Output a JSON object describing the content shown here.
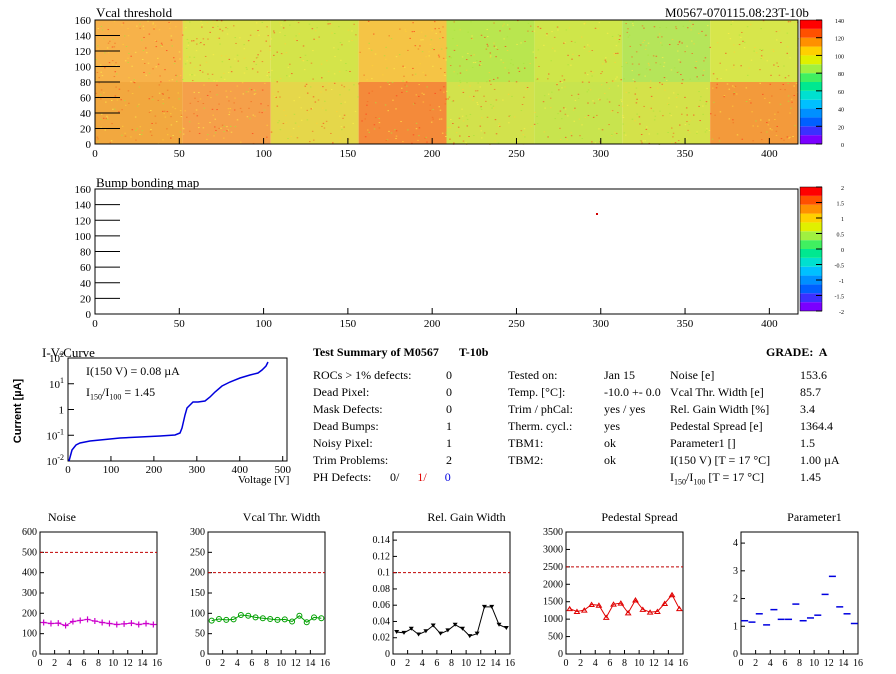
{
  "header": {
    "title": "Vcal threshold",
    "module_id": "M0567-070115.08:23T-10b"
  },
  "maps": {
    "vcal": {
      "title": "Vcal threshold",
      "x_ticks": [
        "0",
        "50",
        "100",
        "150",
        "200",
        "250",
        "300",
        "350",
        "400"
      ],
      "y_ticks": [
        "0",
        "20",
        "40",
        "60",
        "80",
        "100",
        "120",
        "140",
        "160"
      ],
      "z_ticks": [
        "0",
        "20",
        "40",
        "60",
        "80",
        "100",
        "120",
        "140"
      ]
    },
    "bump": {
      "title": "Bump bonding map",
      "x_ticks": [
        "0",
        "50",
        "100",
        "150",
        "200",
        "250",
        "300",
        "350",
        "400"
      ],
      "y_ticks": [
        "0",
        "20",
        "40",
        "60",
        "80",
        "100",
        "120",
        "140",
        "160"
      ],
      "z_ticks": [
        "-2",
        "-1.5",
        "-1",
        "-0.5",
        "0",
        "0.5",
        "1",
        "1.5",
        "2"
      ]
    }
  },
  "iv": {
    "title": "I-V-Curve",
    "ylabel": "Current [µA]",
    "xlabel": "Voltage [V]",
    "ann1": "I(150 V) = 0.08 µA",
    "ann2_pre": "I",
    "ann2_sub1": "150",
    "ann2_mid": "/I",
    "ann2_sub2": "100",
    "ann2_post": " =  1.45",
    "x_ticks": [
      "0",
      "100",
      "200",
      "300",
      "400",
      "500"
    ],
    "y_ticks": [
      "10",
      "10",
      "1",
      "10",
      "10"
    ],
    "y_exps": [
      "2",
      "1",
      "",
      "-1",
      "-2"
    ]
  },
  "summary": {
    "title": "Test Summary of M0567",
    "temp_tag": "T-10b",
    "grade_label": "GRADE:",
    "grade": "A",
    "left": [
      {
        "label": "ROCs > 1% defects:",
        "value": "0"
      },
      {
        "label": "Dead Pixel:",
        "value": "0"
      },
      {
        "label": "Mask Defects:",
        "value": "0"
      },
      {
        "label": "Dead Bumps:",
        "value": "1"
      },
      {
        "label": "Noisy Pixel:",
        "value": "1"
      },
      {
        "label": "Trim Problems:",
        "value": "2"
      }
    ],
    "ph_label": "PH Defects:",
    "ph_values": [
      "0/",
      "1/",
      "0"
    ],
    "ph_colors": [
      "#000000",
      "#e00000",
      "#0000e0"
    ],
    "mid": [
      {
        "label": "Tested on:",
        "value": "Jan 15"
      },
      {
        "label": "Temp. [°C]:",
        "value": "-10.0 +- 0.0"
      },
      {
        "label": "Trim / phCal:",
        "value": "yes / yes"
      },
      {
        "label": "Therm. cycl.:",
        "value": "yes"
      },
      {
        "label": "TBM1:",
        "value": "ok"
      },
      {
        "label": "TBM2:",
        "value": "ok"
      }
    ],
    "right": [
      {
        "label": "Noise [e]",
        "value": "153.6"
      },
      {
        "label": "Vcal Thr. Width [e]",
        "value": "85.7"
      },
      {
        "label": "Rel. Gain Width [%]",
        "value": "3.4"
      },
      {
        "label": "Pedestal Spread [e]",
        "value": "1364.4"
      },
      {
        "label": "Parameter1 []",
        "value": "1.5"
      },
      {
        "label": "I(150 V) [T = 17 °C]",
        "value": "1.00 µA"
      }
    ],
    "ratio_label_pre": "I",
    "ratio_sub1": "150",
    "ratio_mid": "/I",
    "ratio_sub2": "100",
    "ratio_post": "  [T = 17 °C]",
    "ratio_value": "1.45"
  },
  "chart_data": [
    {
      "type": "line",
      "title": "Noise",
      "marker": "cross",
      "color": "#cc00cc",
      "x": [
        0,
        1,
        2,
        3,
        4,
        5,
        6,
        7,
        8,
        9,
        10,
        11,
        12,
        13,
        14,
        15
      ],
      "values": [
        155,
        150,
        152,
        140,
        160,
        165,
        170,
        162,
        155,
        150,
        145,
        148,
        152,
        145,
        150,
        145
      ],
      "ylim": [
        0,
        600
      ],
      "y_ticks": [
        0,
        100,
        200,
        300,
        400,
        500,
        600
      ],
      "ref_line": 500,
      "xlim": [
        0,
        16
      ],
      "x_ticks": [
        0,
        2,
        4,
        6,
        8,
        10,
        12,
        14,
        16
      ]
    },
    {
      "type": "line",
      "title": "Vcal Thr. Width",
      "marker": "circle",
      "color": "#00a000",
      "x": [
        0,
        1,
        2,
        3,
        4,
        5,
        6,
        7,
        8,
        9,
        10,
        11,
        12,
        13,
        14,
        15
      ],
      "values": [
        82,
        86,
        84,
        85,
        96,
        94,
        90,
        88,
        86,
        84,
        85,
        80,
        94,
        78,
        90,
        88
      ],
      "ylim": [
        0,
        300
      ],
      "y_ticks": [
        0,
        50,
        100,
        150,
        200,
        250,
        300
      ],
      "ref_line": 200,
      "xlim": [
        0,
        16
      ],
      "x_ticks": [
        0,
        2,
        4,
        6,
        8,
        10,
        12,
        14,
        16
      ]
    },
    {
      "type": "line",
      "title": "Rel. Gain Width",
      "marker": "triangle-down",
      "color": "#000000",
      "x": [
        0,
        1,
        2,
        3,
        4,
        5,
        6,
        7,
        8,
        9,
        10,
        11,
        12,
        13,
        14,
        15
      ],
      "values": [
        0.027,
        0.026,
        0.031,
        0.024,
        0.028,
        0.035,
        0.025,
        0.029,
        0.036,
        0.031,
        0.022,
        0.025,
        0.058,
        0.058,
        0.036,
        0.032
      ],
      "ylim": [
        0,
        0.15
      ],
      "y_ticks": [
        0,
        0.02,
        0.04,
        0.06,
        0.08,
        0.1,
        0.12,
        0.14
      ],
      "ref_line": 0.1,
      "xlim": [
        0,
        16
      ],
      "x_ticks": [
        0,
        2,
        4,
        6,
        8,
        10,
        12,
        14,
        16
      ]
    },
    {
      "type": "line",
      "title": "Pedestal Spread",
      "marker": "triangle-up",
      "color": "#e00000",
      "x": [
        0,
        1,
        2,
        3,
        4,
        5,
        6,
        7,
        8,
        9,
        10,
        11,
        12,
        13,
        14,
        15
      ],
      "values": [
        1300,
        1220,
        1260,
        1420,
        1400,
        1050,
        1430,
        1460,
        1180,
        1550,
        1280,
        1200,
        1220,
        1450,
        1700,
        1300
      ],
      "ylim": [
        0,
        3500
      ],
      "y_ticks": [
        0,
        500,
        1000,
        1500,
        2000,
        2500,
        3000,
        3500
      ],
      "ref_line": 2500,
      "xlim": [
        0,
        16
      ],
      "x_ticks": [
        0,
        2,
        4,
        6,
        8,
        10,
        12,
        14,
        16
      ]
    },
    {
      "type": "scatter",
      "title": "Parameter1",
      "marker": "hbar",
      "color": "#0000e0",
      "x": [
        0,
        1,
        2,
        3,
        4,
        5,
        6,
        7,
        8,
        9,
        10,
        11,
        12,
        13,
        14,
        15
      ],
      "values": [
        1.2,
        1.15,
        1.45,
        1.05,
        1.6,
        1.25,
        1.25,
        1.8,
        1.2,
        1.3,
        1.4,
        2.15,
        2.8,
        1.7,
        1.45,
        1.1
      ],
      "ylim": [
        0,
        4.4
      ],
      "y_ticks": [
        0,
        1,
        2,
        3,
        4
      ],
      "ref_line": null,
      "xlim": [
        0,
        16
      ],
      "x_ticks": [
        0,
        2,
        4,
        6,
        8,
        10,
        12,
        14,
        16
      ]
    }
  ]
}
